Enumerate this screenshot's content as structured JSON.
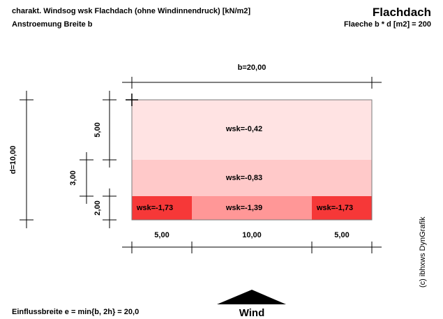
{
  "header": {
    "title_left": "charakt. Windsog wsk Flachdach (ohne Windinnendruck) [kN/m2]",
    "subtitle_left": "Anstroemung Breite b",
    "title_right": "Flachdach",
    "subtitle_right": "Flaeche b * d [m2] = 200"
  },
  "dimensions": {
    "b_label": "b=20,00",
    "d_label": "d=10,00",
    "left_segments": [
      "5,00",
      "3,00",
      "2,00"
    ],
    "bottom_segments": [
      "5,00",
      "10,00",
      "5,00"
    ]
  },
  "zones": [
    {
      "label": "wsk=-0,42",
      "color": "#ffe3e3"
    },
    {
      "label": "wsk=-0,83",
      "color": "#ffc9c9"
    },
    {
      "label": "wsk=-1,73",
      "color": "#f63838"
    },
    {
      "label": "wsk=-1,39",
      "color": "#ff9797"
    },
    {
      "label": "wsk=-1,73",
      "color": "#f63838"
    }
  ],
  "footer": {
    "influence_width": "Einflussbreite e = min{b, 2h} = 20,0",
    "wind_label": "Wind",
    "copyright": "(c) ibhxws DynGrafik"
  }
}
